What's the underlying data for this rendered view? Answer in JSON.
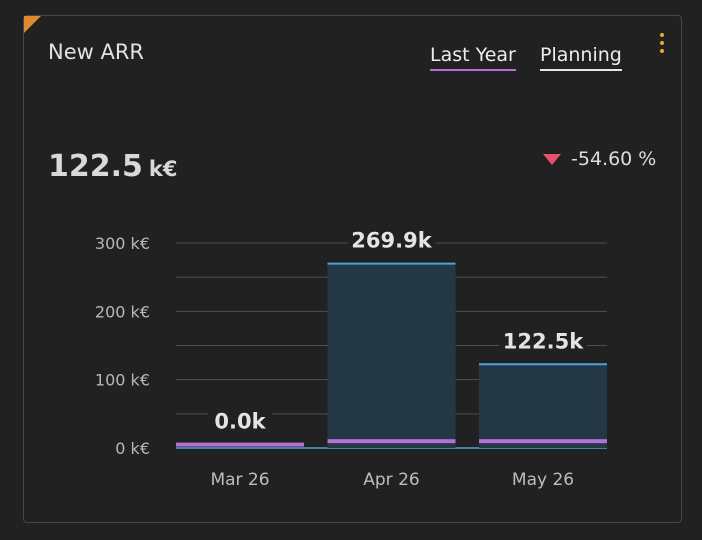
{
  "card": {
    "title": "New ARR",
    "tabs": [
      {
        "label": "Last Year"
      },
      {
        "label": "Planning"
      }
    ],
    "kpi": {
      "value": "122.5",
      "unit": "k€"
    },
    "delta": {
      "value": "-54.60 %",
      "direction": "down",
      "color": "#e6526b"
    }
  },
  "colors": {
    "corner": "#e08a2e",
    "kebab": "#e9a92a",
    "bar_fill": "#233844",
    "bar_top": "#4aa3df",
    "last_year_line": "#b56fd6"
  },
  "chart_data": {
    "type": "bar",
    "categories": [
      "Mar 26",
      "Apr 26",
      "May 26"
    ],
    "values": [
      0.0,
      269.9,
      122.5
    ],
    "value_labels": [
      "0.0k",
      "269.9k",
      "122.5k"
    ],
    "last_year": [
      5,
      10,
      10
    ],
    "ylim": [
      0,
      300
    ],
    "yticks": [
      0,
      100,
      200,
      300
    ],
    "ytick_labels": [
      "0 k€",
      "100 k€",
      "200 k€",
      "300 k€"
    ],
    "grid": true
  }
}
